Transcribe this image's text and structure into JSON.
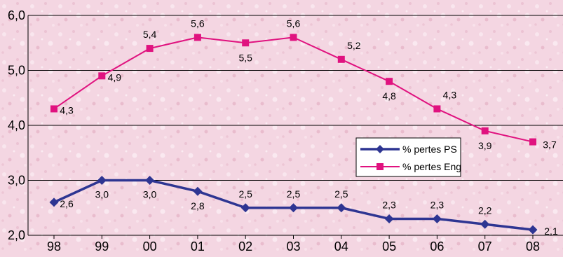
{
  "chart_data": {
    "type": "line",
    "categories": [
      "98",
      "99",
      "00",
      "01",
      "02",
      "03",
      "04",
      "05",
      "06",
      "07",
      "08"
    ],
    "ylim": [
      2.0,
      6.0
    ],
    "yticks": [
      "2,0",
      "3,0",
      "4,0",
      "5,0",
      "6,0"
    ],
    "grid": true,
    "legend_position": "right",
    "series": [
      {
        "name": "% pertes PS",
        "color": "#2e3592",
        "marker": "diamond",
        "values": [
          2.6,
          3.0,
          3.0,
          2.8,
          2.5,
          2.5,
          2.5,
          2.3,
          2.3,
          2.2,
          2.1
        ],
        "labels": [
          "2,6",
          "3,0",
          "3,0",
          "2,8",
          "2,5",
          "2,5",
          "2,5",
          "2,3",
          "2,3",
          "2,2",
          "2,1"
        ]
      },
      {
        "name": "% pertes Eng",
        "color": "#e0127f",
        "marker": "square",
        "values": [
          4.3,
          4.9,
          5.4,
          5.6,
          5.5,
          5.6,
          5.2,
          4.8,
          4.3,
          3.9,
          3.7
        ],
        "labels": [
          "4,3",
          "4,9",
          "5,4",
          "5,6",
          "5,5",
          "5,6",
          "5,2",
          "4,8",
          "4,3",
          "3,9",
          "3,7"
        ]
      }
    ]
  }
}
